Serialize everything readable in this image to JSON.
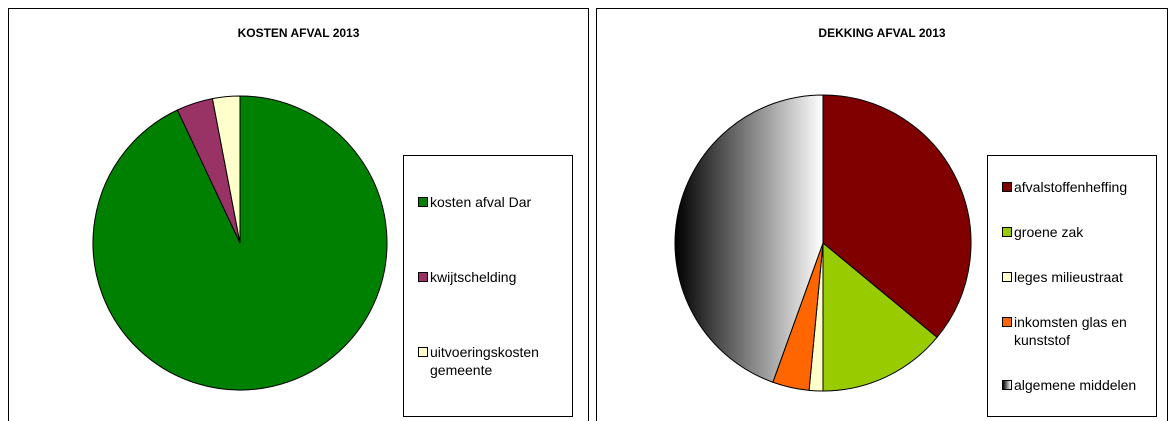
{
  "chart_data": [
    {
      "type": "pie",
      "title": "KOSTEN AFVAL 2013",
      "categories": [
        "kosten afval Dar",
        "kwijtschelding",
        "uitvoeringskosten gemeente"
      ],
      "values": [
        93,
        4,
        3
      ],
      "colors": [
        "#008000",
        "#993366",
        "#ffffcc"
      ]
    },
    {
      "type": "pie",
      "title": "DEKKING AFVAL 2013",
      "categories": [
        "afvalstoffenheffing",
        "groene zak",
        "leges milieustraat",
        "inkomsten glas en kunststof",
        "algemene middelen"
      ],
      "values": [
        36,
        14,
        1.5,
        4,
        44.5
      ],
      "colors": [
        "#800000",
        "#99cc00",
        "#ffffcc",
        "#ff6600",
        {
          "from": "#000000",
          "to": "#ffffff"
        }
      ]
    }
  ]
}
